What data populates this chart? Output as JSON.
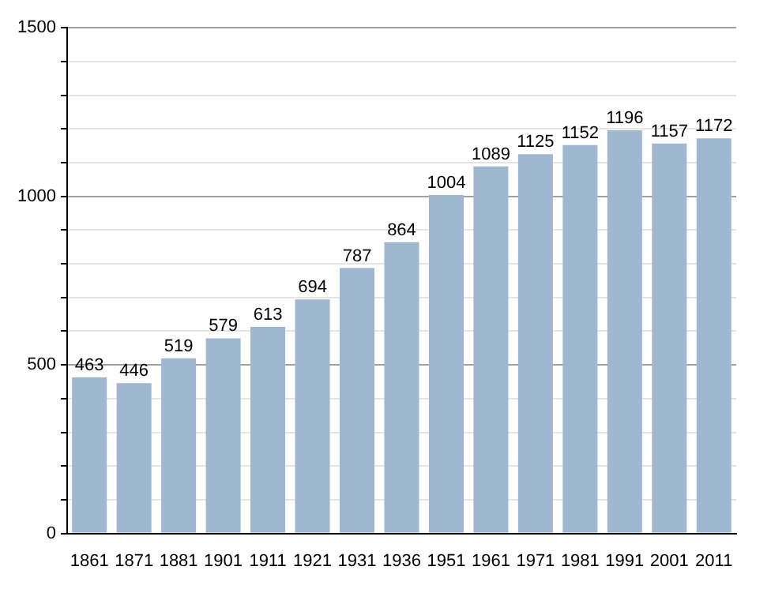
{
  "chart_data": {
    "type": "bar",
    "categories": [
      "1861",
      "1871",
      "1881",
      "1901",
      "1911",
      "1921",
      "1931",
      "1936",
      "1951",
      "1961",
      "1971",
      "1981",
      "1991",
      "2001",
      "2011"
    ],
    "values": [
      463,
      446,
      519,
      579,
      613,
      694,
      787,
      864,
      1004,
      1089,
      1125,
      1152,
      1196,
      1157,
      1172
    ],
    "color": "#a0b7d2",
    "ylim": [
      0,
      1500
    ],
    "yticks": [
      0,
      {
        "value": 100,
        "label": null
      },
      {
        "value": 200,
        "label": null
      },
      {
        "value": 300,
        "label": null
      },
      {
        "value": 400,
        "label": null
      },
      500,
      {
        "value": 600,
        "label": null
      },
      {
        "value": 700,
        "label": null
      },
      {
        "value": 800,
        "label": null
      },
      {
        "value": 900,
        "label": null
      },
      1000,
      {
        "value": 1100,
        "label": null
      },
      {
        "value": 1200,
        "label": null
      },
      {
        "value": 1300,
        "label": null
      },
      {
        "value": 1400,
        "label": null
      },
      1500
    ],
    "grid": "y",
    "data_labels": true
  }
}
